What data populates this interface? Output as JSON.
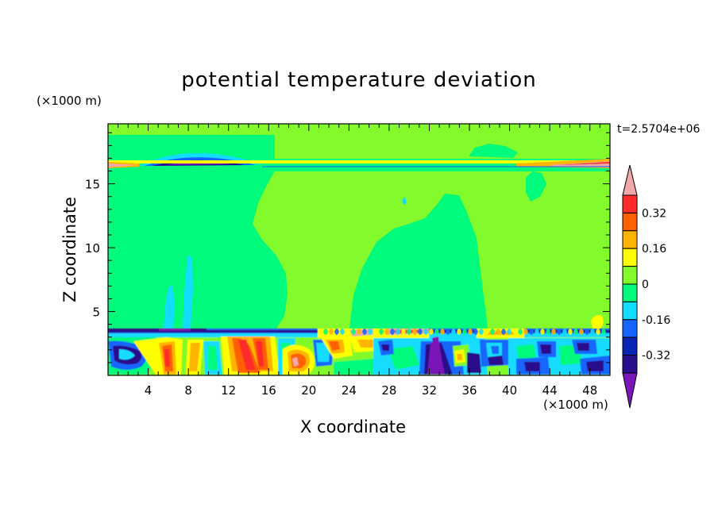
{
  "chart_data": {
    "type": "heatmap",
    "title": "potential temperature deviation",
    "xlabel": "X coordinate",
    "ylabel": "Z coordinate",
    "x_unit": "(×1000 m)",
    "y_unit": "(×1000 m)",
    "timestamp": "t=2.5704e+06",
    "xlim": [
      0,
      50
    ],
    "ylim": [
      0,
      19.7
    ],
    "x_ticks": [
      4,
      8,
      12,
      16,
      20,
      24,
      28,
      32,
      36,
      40,
      44,
      48
    ],
    "y_ticks": [
      5,
      10,
      15
    ],
    "colorbar": {
      "levels": [
        -0.4,
        -0.32,
        -0.24,
        -0.16,
        -0.08,
        0,
        0.08,
        0.16,
        0.24,
        0.32,
        0.4
      ],
      "tick_labels": [
        "-0.32",
        "-0.16",
        "0",
        "0.16",
        "0.32"
      ],
      "colors": [
        "#7a16b8",
        "#2a0f8c",
        "#0a24b4",
        "#1466ff",
        "#12dcff",
        "#00fa7c",
        "#82fa2c",
        "#ffff00",
        "#ffb400",
        "#ff6000",
        "#ff2a2a",
        "#f0a8a8"
      ],
      "extend": "both"
    },
    "regions": [
      {
        "x": [
          0,
          50
        ],
        "z": [
          0.6,
          3.4
        ],
        "value": "mixed strong positive and negative anomalies (about -0.4 to +0.4)"
      },
      {
        "x": [
          0,
          50
        ],
        "z": [
          16.6,
          17.2
        ],
        "value": "thin layer of strong anomalies near the tropopause (about -0.32 to +0.4)"
      },
      {
        "x": [
          0,
          50
        ],
        "z": [
          3.4,
          16.5
        ],
        "value": "near zero (0 to 0.08 and -0.08 to 0)"
      }
    ]
  }
}
